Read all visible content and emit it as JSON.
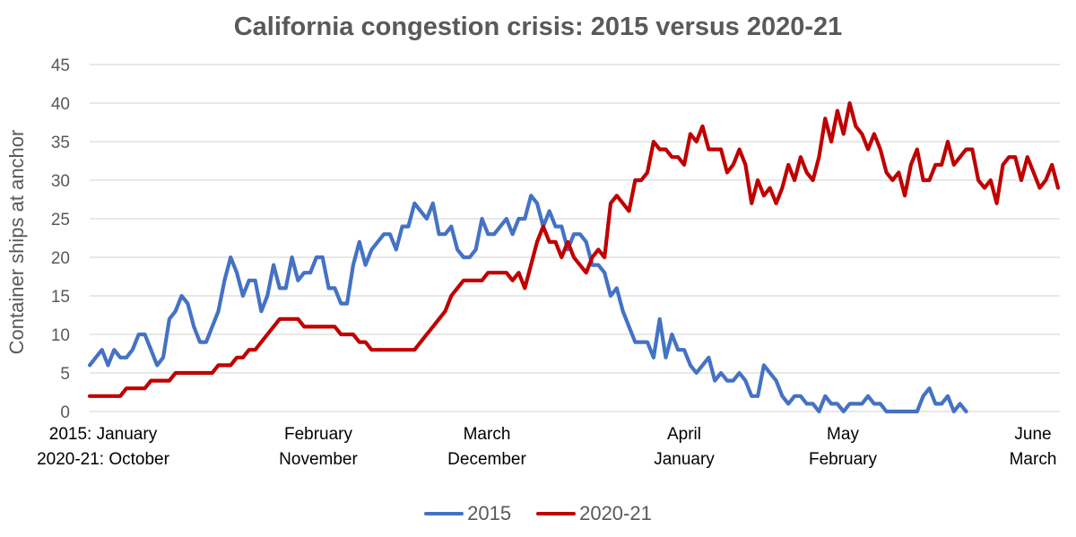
{
  "chart_data": {
    "type": "line",
    "title": "California congestion crisis: 2015 versus 2020-21",
    "ylabel": "Container ships at anchor",
    "xlabel": "",
    "ylim": [
      0,
      45
    ],
    "yticks": [
      "0",
      "5",
      "10",
      "15",
      "20",
      "25",
      "30",
      "35",
      "40",
      "45"
    ],
    "grid": true,
    "legend_position": "bottom",
    "x_tick_labels": [
      {
        "line1": "2015: January",
        "line2": "2020-21: October"
      },
      {
        "line1": "February",
        "line2": "November"
      },
      {
        "line1": "March",
        "line2": "December"
      },
      {
        "line1": "April",
        "line2": "January"
      },
      {
        "line1": "May",
        "line2": "February"
      },
      {
        "line1": "June",
        "line2": "March"
      }
    ],
    "series": [
      {
        "name": "2015",
        "color": "#4472C4",
        "values": [
          6,
          7,
          8,
          6,
          8,
          7,
          7,
          8,
          10,
          10,
          8,
          6,
          7,
          12,
          13,
          15,
          14,
          11,
          9,
          9,
          11,
          13,
          17,
          20,
          18,
          15,
          17,
          17,
          13,
          15,
          19,
          16,
          16,
          20,
          17,
          18,
          18,
          20,
          20,
          16,
          16,
          14,
          14,
          19,
          22,
          19,
          21,
          22,
          23,
          23,
          21,
          24,
          24,
          27,
          26,
          25,
          27,
          23,
          23,
          24,
          21,
          20,
          20,
          21,
          25,
          23,
          23,
          24,
          25,
          23,
          25,
          25,
          28,
          27,
          24,
          26,
          24,
          24,
          21,
          23,
          23,
          22,
          19,
          19,
          18,
          15,
          16,
          13,
          11,
          9,
          9,
          9,
          7,
          12,
          7,
          10,
          8,
          8,
          6,
          5,
          6,
          7,
          4,
          5,
          4,
          4,
          5,
          4,
          2,
          2,
          6,
          5,
          4,
          2,
          1,
          2,
          2,
          1,
          1,
          0,
          2,
          1,
          1,
          0,
          1,
          1,
          1,
          2,
          1,
          1,
          0,
          0,
          0,
          0,
          0,
          0,
          2,
          3,
          1,
          1,
          2,
          0,
          1,
          0
        ]
      },
      {
        "name": "2020-21",
        "color": "#C00000",
        "values": [
          2,
          2,
          2,
          2,
          2,
          2,
          3,
          3,
          3,
          3,
          4,
          4,
          4,
          4,
          5,
          5,
          5,
          5,
          5,
          5,
          5,
          6,
          6,
          6,
          7,
          7,
          8,
          8,
          9,
          10,
          11,
          12,
          12,
          12,
          12,
          11,
          11,
          11,
          11,
          11,
          11,
          10,
          10,
          10,
          9,
          9,
          8,
          8,
          8,
          8,
          8,
          8,
          8,
          8,
          9,
          10,
          11,
          12,
          13,
          15,
          16,
          17,
          17,
          17,
          17,
          18,
          18,
          18,
          18,
          17,
          18,
          16,
          19,
          22,
          24,
          22,
          22,
          20,
          22,
          20,
          19,
          18,
          20,
          21,
          20,
          27,
          28,
          27,
          26,
          30,
          30,
          31,
          35,
          34,
          34,
          33,
          33,
          32,
          36,
          35,
          37,
          34,
          34,
          34,
          31,
          32,
          34,
          32,
          27,
          30,
          28,
          29,
          27,
          29,
          32,
          30,
          33,
          31,
          30,
          33,
          38,
          35,
          39,
          36,
          40,
          37,
          36,
          34,
          36,
          34,
          31,
          30,
          31,
          28,
          32,
          34,
          30,
          30,
          32,
          32,
          35,
          32,
          33,
          34,
          34,
          30,
          29,
          30,
          27,
          32,
          33,
          33,
          30,
          33,
          31,
          29,
          30,
          32,
          29
        ]
      }
    ]
  }
}
